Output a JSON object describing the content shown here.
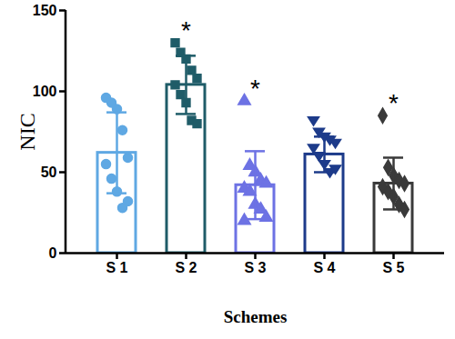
{
  "chart_data": {
    "type": "bar",
    "x_label": "Schemes",
    "y_label": "NIC",
    "categories": [
      "S 1",
      "S 2",
      "S 3",
      "S 4",
      "S 5"
    ],
    "values": [
      62,
      104,
      42,
      61,
      43
    ],
    "errors": [
      25,
      18,
      21,
      11,
      16
    ],
    "points": [
      [
        96,
        93,
        89,
        76,
        59,
        55,
        46,
        38,
        28,
        32
      ],
      [
        130,
        124,
        120,
        113,
        108,
        104,
        98,
        93,
        82,
        80
      ],
      [
        94,
        54,
        50,
        45,
        43,
        40,
        38,
        30,
        27,
        22,
        20
      ],
      [
        82,
        75,
        72,
        70,
        68,
        65,
        60,
        55,
        50,
        52
      ],
      [
        85,
        53,
        48,
        45,
        43,
        41,
        38,
        35,
        30,
        27
      ]
    ],
    "colors": [
      "#5fa8e3",
      "#1f5c68",
      "#6d72e4",
      "#1d3b8a",
      "#3a3a3a"
    ],
    "annotations": [
      {
        "category": "S 2",
        "text": "*"
      },
      {
        "category": "S 3",
        "text": "*"
      },
      {
        "category": "S 5",
        "text": "*"
      }
    ],
    "ylim": [
      0,
      150
    ],
    "yticks": [
      0,
      50,
      100,
      150
    ]
  }
}
